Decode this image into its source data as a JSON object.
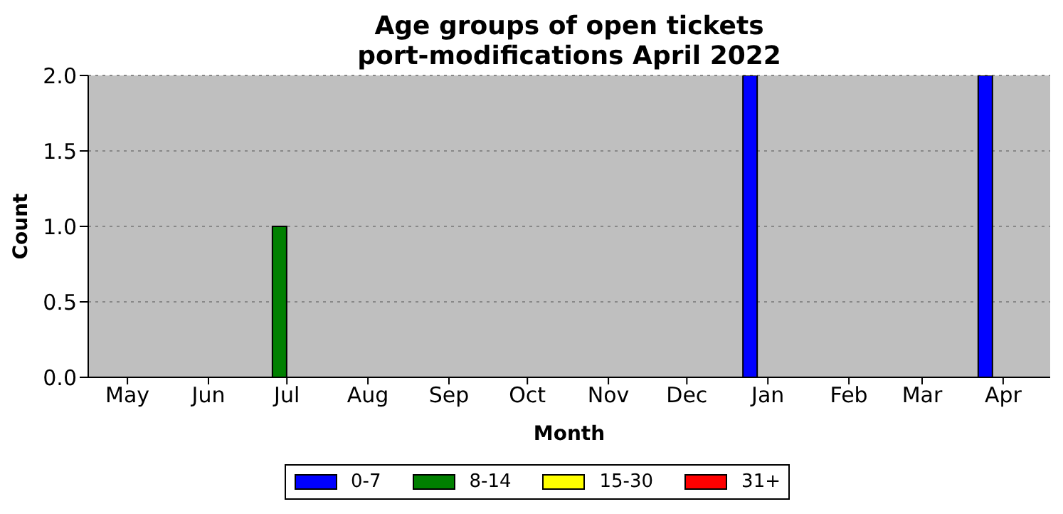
{
  "chart_data": {
    "type": "bar",
    "title": "Age groups of open tickets\nport-modifications April 2022",
    "xlabel": "Month",
    "ylabel": "Count",
    "x": [
      "2021-06-28",
      "2021-12-25",
      "2022-03-25"
    ],
    "series": [
      {
        "name": "0-7",
        "color": "#0000ff",
        "values": [
          0,
          2,
          2
        ]
      },
      {
        "name": "8-14",
        "color": "#008000",
        "values": [
          1,
          0,
          0
        ]
      },
      {
        "name": "15-30",
        "color": "#ffff00",
        "values": [
          0,
          0,
          0
        ]
      },
      {
        "name": "31+",
        "color": "#ff0000",
        "values": [
          0,
          0,
          0
        ]
      }
    ],
    "stacked": true,
    "xlim": [
      "2021-04-16",
      "2022-04-19"
    ],
    "xticks": [
      {
        "value": "2021-05-01",
        "label": "May"
      },
      {
        "value": "2021-06-01",
        "label": "Jun"
      },
      {
        "value": "2021-07-01",
        "label": "Jul"
      },
      {
        "value": "2021-08-01",
        "label": "Aug"
      },
      {
        "value": "2021-09-01",
        "label": "Sep"
      },
      {
        "value": "2021-10-01",
        "label": "Oct"
      },
      {
        "value": "2021-11-01",
        "label": "Nov"
      },
      {
        "value": "2021-12-01",
        "label": "Dec"
      },
      {
        "value": "2022-01-01",
        "label": "Jan"
      },
      {
        "value": "2022-02-01",
        "label": "Feb"
      },
      {
        "value": "2022-03-01",
        "label": "Mar"
      },
      {
        "value": "2022-04-01",
        "label": "Apr"
      }
    ],
    "ylim": [
      0,
      2
    ],
    "yticks": [
      {
        "value": 0,
        "label": "0.0"
      },
      {
        "value": 0.5,
        "label": "0.5"
      },
      {
        "value": 1,
        "label": "1.0"
      },
      {
        "value": 1.5,
        "label": "1.5"
      },
      {
        "value": 2,
        "label": "2.0"
      }
    ],
    "grid": "y",
    "legend": "bottom"
  }
}
